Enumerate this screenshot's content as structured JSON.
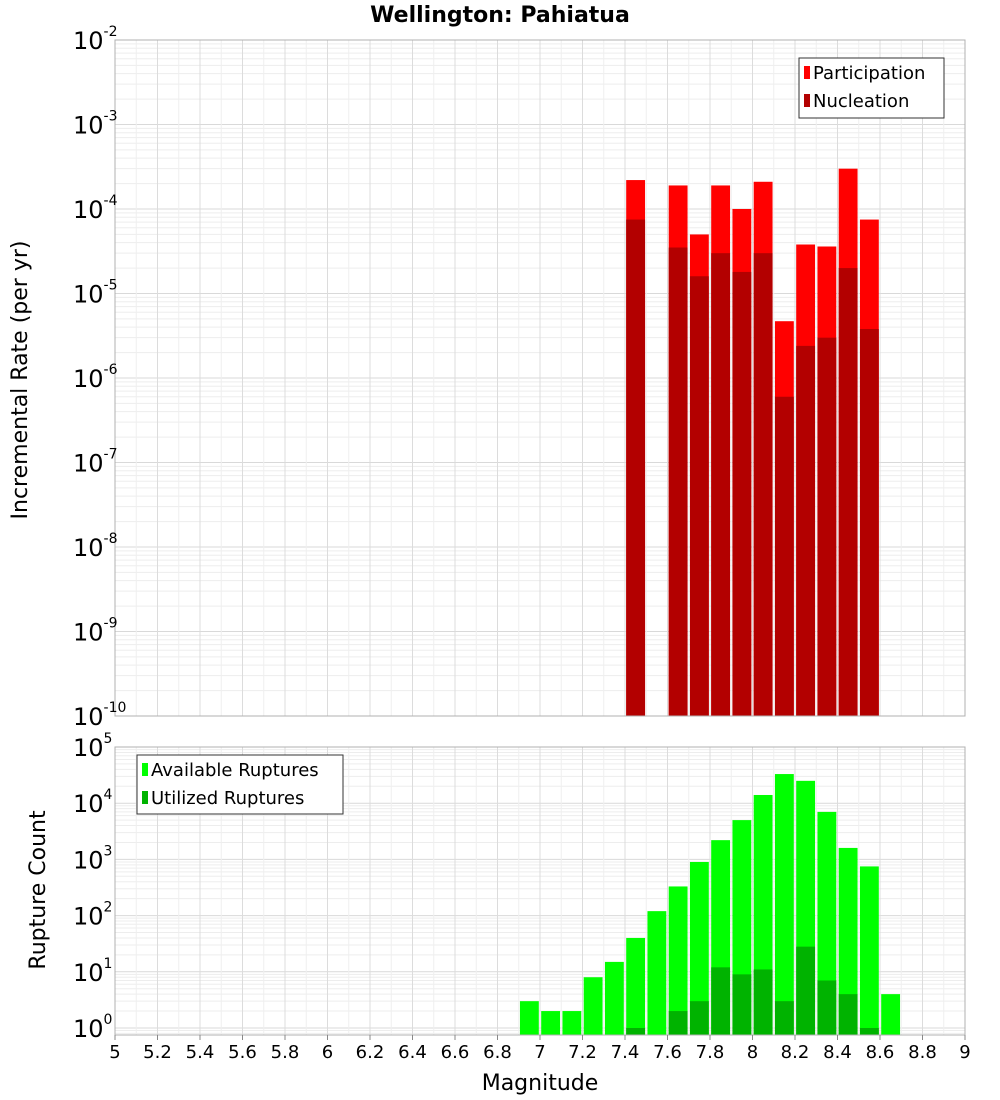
{
  "chart_data": [
    {
      "type": "bar",
      "title": "Wellington: Pahiatua",
      "ylabel": "Incremental Rate (per yr)",
      "xlabel": "",
      "y_scale": "log",
      "ylim": [
        1e-10,
        0.01
      ],
      "xlim": [
        5,
        9
      ],
      "grid": true,
      "legend_position": "top-right",
      "y_tick_labels": [
        {
          "base": "10",
          "exp": "-10"
        },
        {
          "base": "10",
          "exp": "-9"
        },
        {
          "base": "10",
          "exp": "-8"
        },
        {
          "base": "10",
          "exp": "-7"
        },
        {
          "base": "10",
          "exp": "-6"
        },
        {
          "base": "10",
          "exp": "-5"
        },
        {
          "base": "10",
          "exp": "-4"
        },
        {
          "base": "10",
          "exp": "-3"
        },
        {
          "base": "10",
          "exp": "-2"
        }
      ],
      "bin_width": 0.1,
      "series": [
        {
          "name": "Participation",
          "color": "#ff0000",
          "x": [
            7.45,
            7.65,
            7.75,
            7.85,
            7.95,
            8.05,
            8.15,
            8.25,
            8.35,
            8.45,
            8.55
          ],
          "values": [
            0.00022,
            0.00019,
            5e-05,
            0.00019,
            0.0001,
            0.00021,
            4.7e-06,
            3.8e-05,
            3.6e-05,
            0.0003,
            7.5e-05
          ]
        },
        {
          "name": "Nucleation",
          "color": "#b30000",
          "x": [
            7.45,
            7.65,
            7.75,
            7.85,
            7.95,
            8.05,
            8.15,
            8.25,
            8.35,
            8.45,
            8.55
          ],
          "values": [
            7.5e-05,
            3.5e-05,
            1.6e-05,
            3e-05,
            1.8e-05,
            3e-05,
            6e-07,
            2.4e-06,
            3e-06,
            2e-05,
            3.8e-06
          ]
        }
      ]
    },
    {
      "type": "bar",
      "title": "",
      "ylabel": "Rupture Count",
      "xlabel": "Magnitude",
      "y_scale": "log",
      "ylim": [
        0.75,
        100000.0
      ],
      "xlim": [
        5,
        9
      ],
      "grid": true,
      "legend_position": "top-left",
      "x_tick_labels": [
        "5",
        "5.2",
        "5.4",
        "5.6",
        "5.8",
        "6",
        "6.2",
        "6.4",
        "6.6",
        "6.8",
        "7",
        "7.2",
        "7.4",
        "7.6",
        "7.8",
        "8",
        "8.2",
        "8.4",
        "8.6",
        "8.8",
        "9"
      ],
      "x_ticks": [
        5,
        5.2,
        5.4,
        5.6,
        5.8,
        6,
        6.2,
        6.4,
        6.6,
        6.8,
        7,
        7.2,
        7.4,
        7.6,
        7.8,
        8,
        8.2,
        8.4,
        8.6,
        8.8,
        9
      ],
      "y_tick_labels": [
        {
          "base": "10",
          "exp": "0"
        },
        {
          "base": "10",
          "exp": "1"
        },
        {
          "base": "10",
          "exp": "2"
        },
        {
          "base": "10",
          "exp": "3"
        },
        {
          "base": "10",
          "exp": "4"
        },
        {
          "base": "10",
          "exp": "5"
        }
      ],
      "bin_width": 0.1,
      "series": [
        {
          "name": "Available Ruptures",
          "color": "#00ff00",
          "x": [
            6.95,
            7.05,
            7.15,
            7.25,
            7.35,
            7.45,
            7.55,
            7.65,
            7.75,
            7.85,
            7.95,
            8.05,
            8.15,
            8.25,
            8.35,
            8.45,
            8.55,
            8.65
          ],
          "values": [
            3,
            2,
            2,
            8,
            15,
            40,
            120,
            330,
            900,
            2200,
            5000,
            14000,
            33000,
            25000,
            7000,
            1600,
            750,
            4
          ]
        },
        {
          "name": "Utilized Ruptures",
          "color": "#00b300",
          "x": [
            7.45,
            7.65,
            7.75,
            7.85,
            7.95,
            8.05,
            8.15,
            8.25,
            8.35,
            8.45,
            8.55
          ],
          "values": [
            1,
            2,
            3,
            12,
            9,
            11,
            3,
            28,
            7,
            4,
            1
          ]
        }
      ]
    }
  ]
}
